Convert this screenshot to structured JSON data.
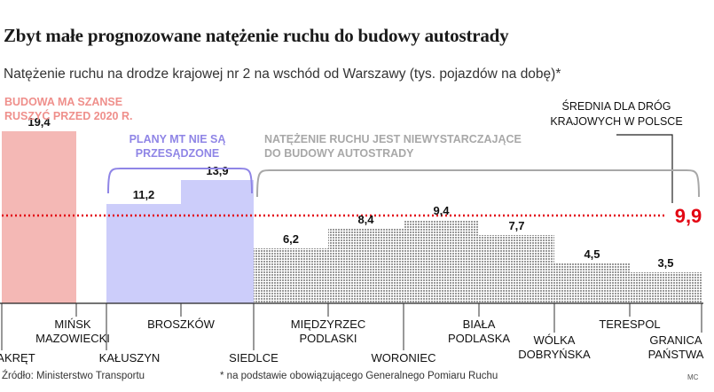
{
  "header": {
    "title": "Zbyt małe prognozowane natężenie ruchu do budowy autostrady",
    "subtitle": "Natężenie ruchu na drodze krajowej nr 2 na wschód od Warszawy (tys. pojazdów na dobę)*"
  },
  "footer": {
    "source": "Źródło: Ministerstwo Transportu",
    "note": "* na podstawie obowiązującego Generalnego Pomiaru Ruchu",
    "credit": "MC"
  },
  "colors": {
    "segment_red": "#f4b8b5",
    "segment_red_text": "#ef8f8b",
    "segment_blue": "#cccdfa",
    "segment_blue_text": "#8f85e6",
    "segment_gray": "#b8b8b8",
    "segment_gray_text": "#a8a8a8",
    "average_line": "#e30613"
  },
  "chart_data": {
    "type": "bar",
    "variant": "step",
    "unit": "tys. pojazdów na dobę",
    "locations": [
      "ZAKRĘT",
      "MIŃSK MAZOWIECKI",
      "KAŁUSZYN",
      "BROSZKÓW",
      "SIEDLCE",
      "MIĘDZYRZEC PODLASKI",
      "WORONIEC",
      "BIAŁA PODLASKA",
      "WÓLKA DOBRYŃSKA",
      "TERESPOL",
      "GRANICA PAŃSTWA"
    ],
    "location_labels": [
      [
        "ZAKRĘT"
      ],
      [
        "MIŃSK",
        "MAZOWIECKI"
      ],
      [
        "KAŁUSZYN"
      ],
      [
        "BROSZKÓW"
      ],
      [
        "SIEDLCE"
      ],
      [
        "MIĘDZYRZEC",
        "PODLASKI"
      ],
      [
        "WORONIEC"
      ],
      [
        "BIAŁA",
        "PODLASKA"
      ],
      [
        "WÓLKA",
        "DOBRYŃSKA"
      ],
      [
        "TERESPOL"
      ],
      [
        "GRANICA",
        "PAŃSTWA"
      ]
    ],
    "segments": [
      {
        "from": "ZAKRĘT",
        "to": "MIŃSK MAZOWIECKI",
        "value": 19.4,
        "label": "19,4",
        "group": "red"
      },
      {
        "from": "MIŃSK MAZOWIECKI",
        "to": "KAŁUSZYN",
        "value": null,
        "label": "",
        "group": "gap"
      },
      {
        "from": "KAŁUSZYN",
        "to": "BROSZKÓW",
        "value": 11.2,
        "label": "11,2",
        "group": "blue"
      },
      {
        "from": "BROSZKÓW",
        "to": "SIEDLCE",
        "value": 13.9,
        "label": "13,9",
        "group": "blue"
      },
      {
        "from": "SIEDLCE",
        "to": "MIĘDZYRZEC PODLASKI",
        "value": 6.2,
        "label": "6,2",
        "group": "gray"
      },
      {
        "from": "MIĘDZYRZEC PODLASKI",
        "to": "WORONIEC",
        "value": 8.4,
        "label": "8,4",
        "group": "gray"
      },
      {
        "from": "WORONIEC",
        "to": "BIAŁA PODLASKA",
        "value": 9.4,
        "label": "9,4",
        "group": "gray"
      },
      {
        "from": "BIAŁA PODLASKA",
        "to": "WÓLKA DOBRYŃSKA",
        "value": 7.7,
        "label": "7,7",
        "group": "gray"
      },
      {
        "from": "WÓLKA DOBRYŃSKA",
        "to": "TERESPOL",
        "value": 4.5,
        "label": "4,5",
        "group": "gray"
      },
      {
        "from": "TERESPOL",
        "to": "GRANICA PAŃSTWA",
        "value": 3.5,
        "label": "3,5",
        "group": "gray"
      }
    ],
    "reference_line": {
      "value": 9.9,
      "label": "9,9",
      "description": [
        "ŚREDNIA DLA DRÓG",
        "KRAJOWYCH W POLSCE"
      ]
    },
    "annotations": [
      {
        "group": "red",
        "lines": [
          "BUDOWA MA SZANSE",
          "RUSZYĆ PRZED 2020 R."
        ]
      },
      {
        "group": "blue",
        "lines": [
          "PLANY MT NIE SĄ",
          "PRZESĄDZONE"
        ]
      },
      {
        "group": "gray",
        "lines": [
          "NATĘŻENIE RUCHU JEST NIEWYSTARCZAJĄCE",
          "DO BUDOWY AUTOSTRADY"
        ]
      }
    ],
    "ylim": [
      0,
      20
    ]
  }
}
